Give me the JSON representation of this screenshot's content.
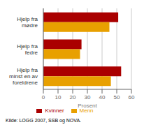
{
  "chart_data": {
    "type": "bar",
    "orientation": "horizontal",
    "categories": [
      "Hjelp fra\nmødre",
      "Hjelp fra\nfedre",
      "Hjelp fra\nminst en av\nforeldrene"
    ],
    "series": [
      {
        "name": "Kvinner",
        "color": "#aa0000",
        "values": [
          51,
          26,
          53
        ]
      },
      {
        "name": "Menn",
        "color": "#e8a000",
        "values": [
          45,
          25,
          46
        ]
      }
    ],
    "xlabel": "Prosent",
    "xlim": [
      0,
      60
    ],
    "xticks": [
      0,
      10,
      20,
      30,
      40,
      50,
      60
    ],
    "grid": true,
    "legend": "bottom",
    "annotations": [
      "Kilde: LOGG 2007, SSB og NOVA."
    ]
  }
}
